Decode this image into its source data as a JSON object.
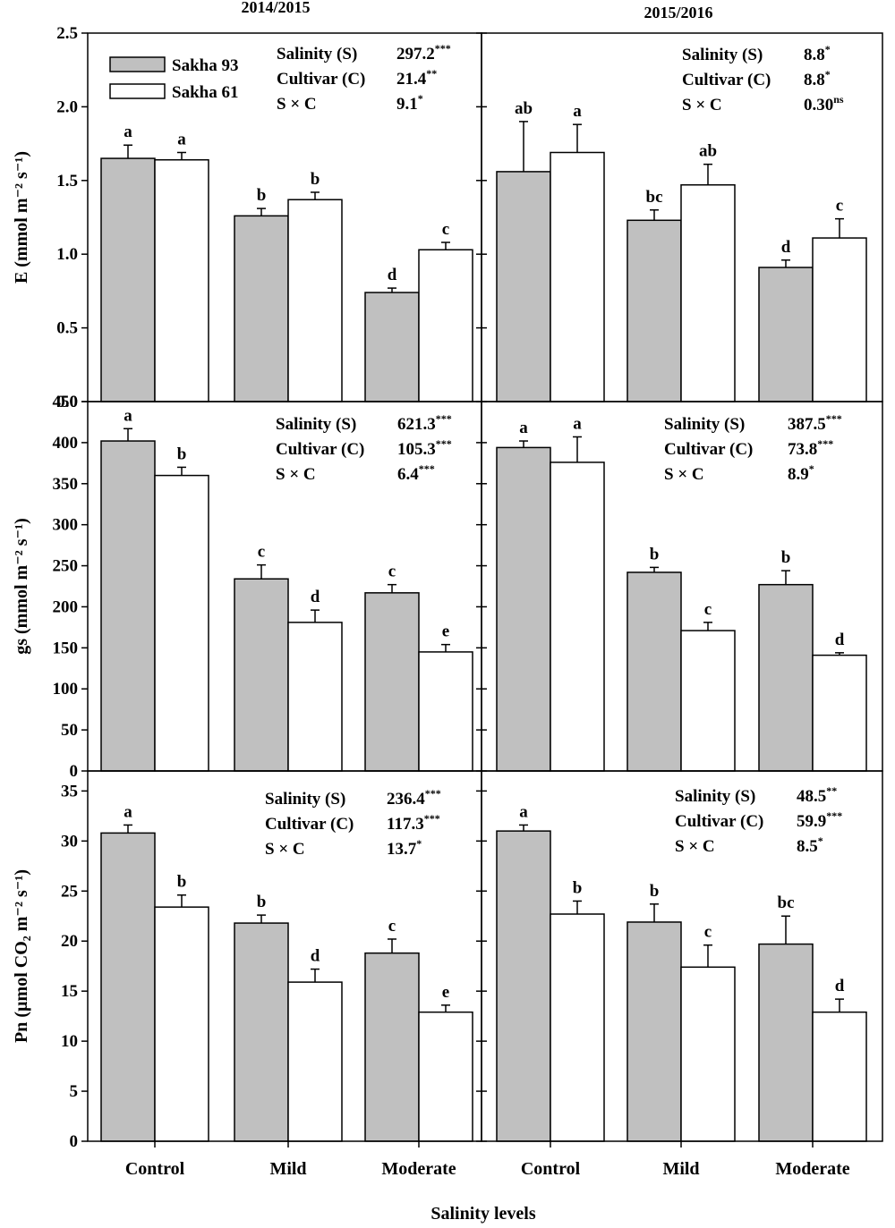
{
  "chart_data": {
    "type": "bar",
    "column_titles": [
      "2014/2015",
      "2015/2016"
    ],
    "xlabel": "Salinity levels",
    "categories": [
      "Control",
      "Mild",
      "Moderate"
    ],
    "legend": [
      {
        "name": "Sakha 93",
        "color": "#c0c0c0"
      },
      {
        "name": "Sakha 61",
        "color": "#ffffff"
      }
    ],
    "rows": [
      {
        "ylabel": "E (mmol m⁻² s⁻¹)",
        "ylim": [
          0,
          2.5
        ],
        "yticks": [
          0.0,
          0.5,
          1.0,
          1.5,
          2.0,
          2.5
        ],
        "ytick_labels": [
          "0.0",
          "0.5",
          "1.0",
          "1.5",
          "2.0",
          "2.5"
        ]
      },
      {
        "ylabel": "gs (mmol m⁻² s⁻¹)",
        "ylim": [
          0,
          450
        ],
        "yticks": [
          0,
          50,
          100,
          150,
          200,
          250,
          300,
          350,
          400,
          450
        ],
        "ytick_labels": [
          "0",
          "50",
          "100",
          "150",
          "200",
          "250",
          "300",
          "350",
          "400",
          "450"
        ]
      },
      {
        "ylabel": "Pn (µmol CO₂ m⁻² s⁻¹)",
        "ylim": [
          0,
          37
        ],
        "yticks": [
          0,
          5,
          10,
          15,
          20,
          25,
          30,
          35
        ],
        "ytick_labels": [
          "0",
          "5",
          "10",
          "15",
          "20",
          "25",
          "30",
          "35"
        ]
      }
    ],
    "panels": [
      {
        "id": "E-2014",
        "series": [
          {
            "name": "Sakha 93",
            "values": [
              1.65,
              1.26,
              0.74
            ],
            "errors": [
              0.09,
              0.05,
              0.03
            ],
            "letters": [
              "a",
              "b",
              "d"
            ]
          },
          {
            "name": "Sakha 61",
            "values": [
              1.64,
              1.37,
              1.03
            ],
            "errors": [
              0.05,
              0.05,
              0.05
            ],
            "letters": [
              "a",
              "b",
              "c"
            ]
          }
        ],
        "stats": [
          {
            "label": "Salinity (S)",
            "value": "297.2",
            "sig": "***"
          },
          {
            "label": "Cultivar (C)",
            "value": "21.4",
            "sig": "**"
          },
          {
            "label": "S × C",
            "value": "9.1",
            "sig": "*"
          }
        ]
      },
      {
        "id": "E-2015",
        "series": [
          {
            "name": "Sakha 93",
            "values": [
              1.56,
              1.23,
              0.91
            ],
            "errors": [
              0.34,
              0.07,
              0.05
            ],
            "letters": [
              "ab",
              "bc",
              "d"
            ]
          },
          {
            "name": "Sakha 61",
            "values": [
              1.69,
              1.47,
              1.11
            ],
            "errors": [
              0.19,
              0.14,
              0.13
            ],
            "letters": [
              "a",
              "ab",
              "c"
            ]
          }
        ],
        "stats": [
          {
            "label": "Salinity (S)",
            "value": "8.8",
            "sig": "*"
          },
          {
            "label": "Cultivar (C)",
            "value": "8.8",
            "sig": "*"
          },
          {
            "label": "S × C",
            "value": "0.30",
            "sig": "ns"
          }
        ]
      },
      {
        "id": "gs-2014",
        "series": [
          {
            "name": "Sakha 93",
            "values": [
              402,
              234,
              217
            ],
            "errors": [
              15,
              17,
              10
            ],
            "letters": [
              "a",
              "c",
              "c"
            ]
          },
          {
            "name": "Sakha 61",
            "values": [
              360,
              181,
              145
            ],
            "errors": [
              10,
              15,
              9
            ],
            "letters": [
              "b",
              "d",
              "e"
            ]
          }
        ],
        "stats": [
          {
            "label": "Salinity (S)",
            "value": "621.3",
            "sig": "***"
          },
          {
            "label": "Cultivar (C)",
            "value": "105.3",
            "sig": "***"
          },
          {
            "label": "S × C",
            "value": "6.4",
            "sig": "***"
          }
        ]
      },
      {
        "id": "gs-2015",
        "series": [
          {
            "name": "Sakha 93",
            "values": [
              394,
              242,
              227
            ],
            "errors": [
              8,
              6,
              17
            ],
            "letters": [
              "a",
              "b",
              "b"
            ]
          },
          {
            "name": "Sakha 61",
            "values": [
              376,
              171,
              141
            ],
            "errors": [
              31,
              10,
              3
            ],
            "letters": [
              "a",
              "c",
              "d"
            ]
          }
        ],
        "stats": [
          {
            "label": "Salinity (S)",
            "value": "387.5",
            "sig": "***"
          },
          {
            "label": "Cultivar (C)",
            "value": "73.8",
            "sig": "***"
          },
          {
            "label": "S × C",
            "value": "8.9",
            "sig": "*"
          }
        ]
      },
      {
        "id": "Pn-2014",
        "series": [
          {
            "name": "Sakha 93",
            "values": [
              30.8,
              21.8,
              18.8
            ],
            "errors": [
              0.8,
              0.8,
              1.4
            ],
            "letters": [
              "a",
              "b",
              "c"
            ]
          },
          {
            "name": "Sakha 61",
            "values": [
              23.4,
              15.9,
              12.9
            ],
            "errors": [
              1.2,
              1.3,
              0.7
            ],
            "letters": [
              "b",
              "d",
              "e"
            ]
          }
        ],
        "stats": [
          {
            "label": "Salinity (S)",
            "value": "236.4",
            "sig": "***"
          },
          {
            "label": "Cultivar (C)",
            "value": "117.3",
            "sig": "***"
          },
          {
            "label": "S × C",
            "value": "13.7",
            "sig": "*"
          }
        ]
      },
      {
        "id": "Pn-2015",
        "series": [
          {
            "name": "Sakha 93",
            "values": [
              31.0,
              21.9,
              19.7
            ],
            "errors": [
              0.6,
              1.8,
              2.8
            ],
            "letters": [
              "a",
              "b",
              "bc"
            ]
          },
          {
            "name": "Sakha 61",
            "values": [
              22.7,
              17.4,
              12.9
            ],
            "errors": [
              1.3,
              2.2,
              1.3
            ],
            "letters": [
              "b",
              "c",
              "d"
            ]
          }
        ],
        "stats": [
          {
            "label": "Salinity (S)",
            "value": "48.5",
            "sig": "**"
          },
          {
            "label": "Cultivar (C)",
            "value": "59.9",
            "sig": "***"
          },
          {
            "label": "S × C",
            "value": "8.5",
            "sig": "*"
          }
        ]
      }
    ]
  }
}
